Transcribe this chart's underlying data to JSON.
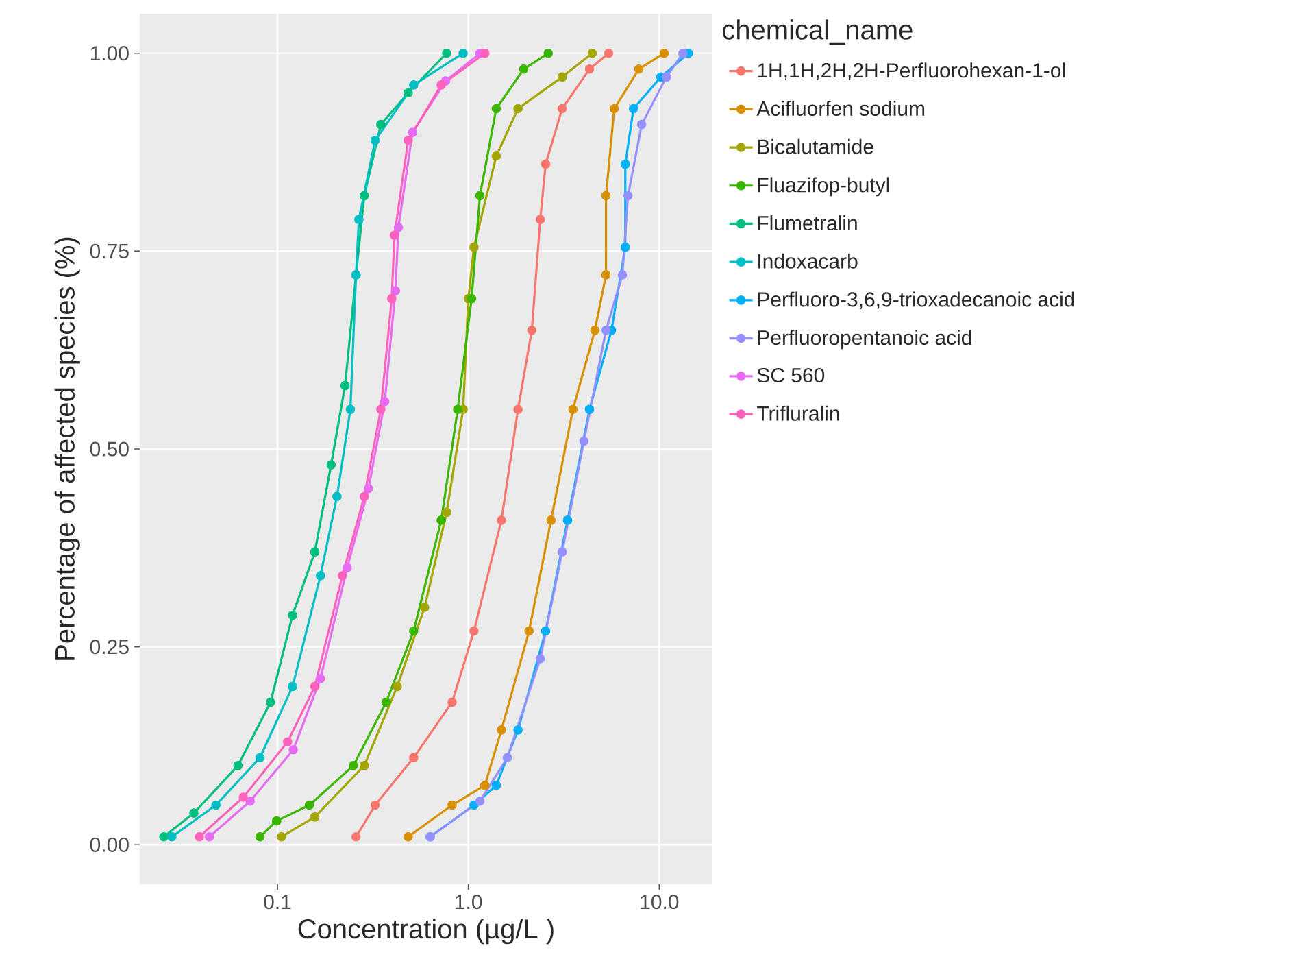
{
  "chart_data": {
    "type": "line",
    "xlabel": "Concentration (µg/L )",
    "ylabel": "Percentage of affected species (%)",
    "legend_title": "chemical_name",
    "legend": "right",
    "grid": true,
    "log": "x",
    "marker": "circle",
    "line_style": "solid",
    "xlim": [
      0.019,
      19
    ],
    "xticks": [
      0.1,
      {
        "value": 1,
        "label": "1.0"
      },
      {
        "value": 10,
        "label": "10.0"
      }
    ],
    "ylim": [
      -0.05,
      1.05
    ],
    "yticks": [
      {
        "value": 0,
        "label": "0.00"
      },
      {
        "value": 0.25,
        "label": "0.25"
      },
      {
        "value": 0.5,
        "label": "0.50"
      },
      {
        "value": 0.75,
        "label": "0.75"
      },
      {
        "value": 1,
        "label": "1.00"
      }
    ],
    "series": [
      {
        "name": "1H,1H,2H,2H-Perfluorohexan-1-ol",
        "color": "#f8766d",
        "x": [
          0.258,
          0.325,
          0.517,
          0.822,
          1.07,
          1.49,
          1.82,
          2.15,
          2.38,
          2.54,
          3.1,
          4.31,
          5.43
        ],
        "values": [
          0.01,
          0.05,
          0.11,
          0.18,
          0.27,
          0.41,
          0.55,
          0.65,
          0.79,
          0.86,
          0.93,
          0.98,
          1.0
        ]
      },
      {
        "name": "Acifluorfen sodium",
        "color": "#d89000",
        "x": [
          0.484,
          0.822,
          1.22,
          1.49,
          2.08,
          2.71,
          3.53,
          4.6,
          5.26,
          5.26,
          5.81,
          7.82,
          10.6
        ],
        "values": [
          0.01,
          0.05,
          0.075,
          0.145,
          0.27,
          0.41,
          0.55,
          0.65,
          0.72,
          0.82,
          0.93,
          0.98,
          1.0
        ]
      },
      {
        "name": "Bicalutamide",
        "color": "#a3a500",
        "x": [
          0.105,
          0.157,
          0.285,
          0.424,
          0.59,
          0.77,
          0.939,
          1.0,
          1.07,
          1.4,
          1.82,
          3.1,
          4.45
        ],
        "values": [
          0.01,
          0.035,
          0.1,
          0.2,
          0.3,
          0.42,
          0.55,
          0.69,
          0.755,
          0.87,
          0.93,
          0.97,
          1.0
        ]
      },
      {
        "name": "Fluazifop-butyl",
        "color": "#39b600",
        "x": [
          0.081,
          0.099,
          0.147,
          0.25,
          0.371,
          0.517,
          0.721,
          0.879,
          1.04,
          1.15,
          1.4,
          1.95,
          2.62
        ],
        "values": [
          0.01,
          0.03,
          0.05,
          0.1,
          0.18,
          0.27,
          0.41,
          0.55,
          0.69,
          0.82,
          0.93,
          0.98,
          1.0
        ]
      },
      {
        "name": "Flumetralin",
        "color": "#00bf7d",
        "x": [
          0.0254,
          0.0365,
          0.0621,
          0.092,
          0.12,
          0.157,
          0.191,
          0.226,
          0.258,
          0.285,
          0.348,
          0.484,
          0.77
        ],
        "values": [
          0.01,
          0.04,
          0.1,
          0.18,
          0.29,
          0.37,
          0.48,
          0.58,
          0.72,
          0.82,
          0.91,
          0.95,
          1.0
        ]
      },
      {
        "name": "Indoxacarb",
        "color": "#00bfc4",
        "x": [
          0.028,
          0.0476,
          0.081,
          0.12,
          0.168,
          0.205,
          0.241,
          0.258,
          0.267,
          0.325,
          0.517,
          0.939
        ],
        "values": [
          0.01,
          0.05,
          0.11,
          0.2,
          0.34,
          0.44,
          0.55,
          0.72,
          0.79,
          0.89,
          0.96,
          1.0
        ]
      },
      {
        "name": "Perfluoro-3,6,9-trioxadecanoic acid",
        "color": "#00b0f6",
        "x": [
          0.631,
          1.07,
          1.4,
          1.82,
          2.54,
          3.31,
          4.31,
          5.62,
          6.64,
          6.64,
          7.33,
          10.2,
          14.2
        ],
        "values": [
          0.01,
          0.05,
          0.075,
          0.145,
          0.27,
          0.41,
          0.55,
          0.65,
          0.755,
          0.86,
          0.93,
          0.97,
          1.0
        ]
      },
      {
        "name": "Perfluoropentanoic acid",
        "color": "#9590ff",
        "x": [
          0.631,
          1.15,
          1.6,
          2.38,
          3.1,
          4.03,
          5.26,
          6.41,
          6.86,
          8.09,
          10.9,
          13.3
        ],
        "values": [
          0.01,
          0.055,
          0.11,
          0.235,
          0.37,
          0.51,
          0.65,
          0.72,
          0.82,
          0.91,
          0.97,
          1.0
        ]
      },
      {
        "name": "SC 560",
        "color": "#e76bf3",
        "x": [
          0.044,
          0.072,
          0.121,
          0.168,
          0.232,
          0.3,
          0.365,
          0.415,
          0.43,
          0.51,
          0.76,
          1.15
        ],
        "values": [
          0.01,
          0.055,
          0.12,
          0.21,
          0.35,
          0.45,
          0.56,
          0.7,
          0.78,
          0.9,
          0.965,
          1.0
        ]
      },
      {
        "name": "Trifluralin",
        "color": "#ff62bc",
        "x": [
          0.039,
          0.0663,
          0.113,
          0.157,
          0.219,
          0.285,
          0.348,
          0.397,
          0.41,
          0.484,
          0.721,
          1.22
        ],
        "values": [
          0.01,
          0.06,
          0.13,
          0.2,
          0.34,
          0.44,
          0.55,
          0.69,
          0.77,
          0.89,
          0.96,
          1.0
        ]
      }
    ]
  }
}
